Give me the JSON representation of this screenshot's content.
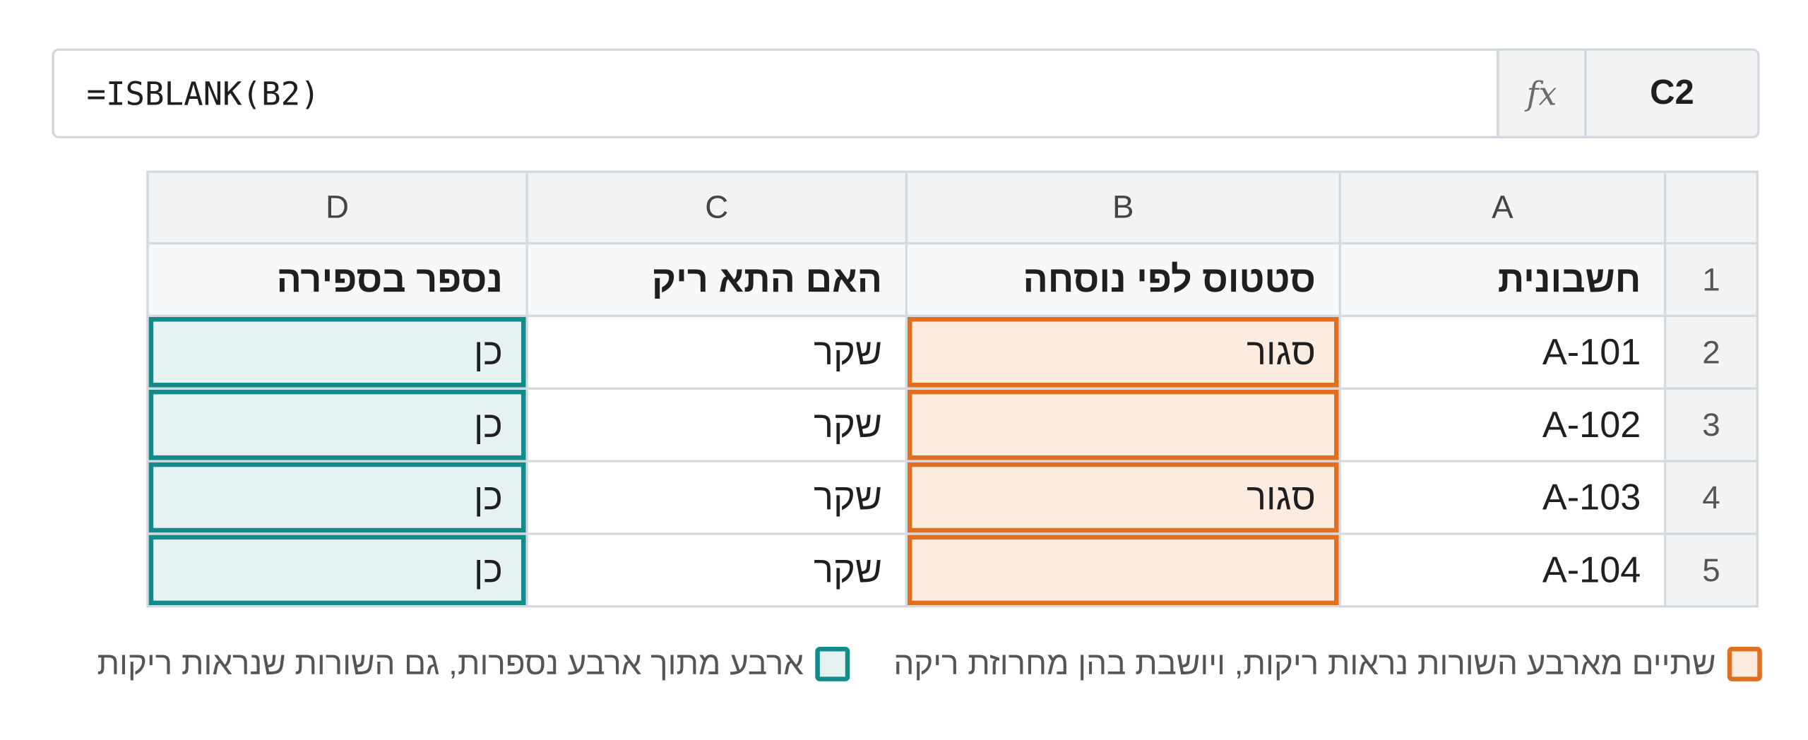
{
  "formula_bar": {
    "formula": "=ISBLANK(B2)",
    "fx_label": "fx",
    "cell_ref": "C2"
  },
  "grid": {
    "column_letters": [
      "A",
      "B",
      "C",
      "D"
    ],
    "headers": [
      "חשבונית",
      "סטטוס לפי נוסחה",
      "האם התא ריק",
      "נספר בספירה"
    ],
    "rows": [
      {
        "num": "2",
        "a": "A-101",
        "b": "סגור",
        "c": "שקר",
        "d": "כן"
      },
      {
        "num": "3",
        "a": "A-102",
        "b": "",
        "c": "שקר",
        "d": "כן"
      },
      {
        "num": "4",
        "a": "A-103",
        "b": "סגור",
        "c": "שקר",
        "d": "כן"
      },
      {
        "num": "5",
        "a": "A-104",
        "b": "",
        "c": "שקר",
        "d": "כן"
      }
    ],
    "header_row_num": "1"
  },
  "legend": {
    "orange_text": "שתיים מארבע השורות נראות ריקות, ויושבת בהן מחרוזת ריקה",
    "teal_text": "ארבע מתוך ארבע נספרות, גם השורות שנראות ריקות",
    "orange_color": "#e07020",
    "teal_color": "#148a8a"
  }
}
